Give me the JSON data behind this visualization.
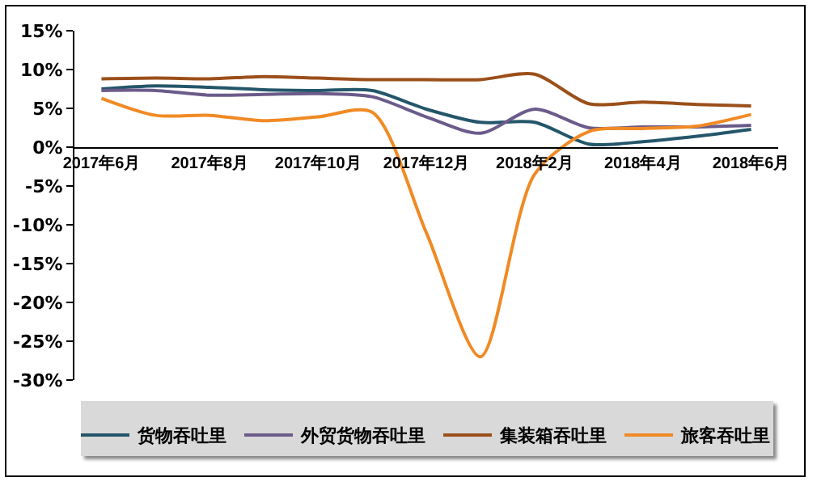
{
  "chart_data": {
    "type": "line",
    "categories": [
      "2017年6月",
      null,
      "2017年8月",
      null,
      "2017年10月",
      null,
      "2017年12月",
      null,
      "2018年2月",
      null,
      "2018年4月",
      null,
      "2018年6月"
    ],
    "series": [
      {
        "name": "货物吞吐里",
        "color": "#24566a",
        "values": [
          7.5,
          7.9,
          7.7,
          7.4,
          7.3,
          7.3,
          4.9,
          3.2,
          3.2,
          0.4,
          0.7,
          1.4,
          2.3
        ]
      },
      {
        "name": "外贸货物吞吐里",
        "color": "#6b5b8a",
        "values": [
          7.3,
          7.3,
          6.7,
          6.8,
          6.9,
          6.5,
          3.9,
          1.8,
          4.9,
          2.5,
          2.6,
          2.6,
          2.8
        ]
      },
      {
        "name": "集装箱吞吐里",
        "color": "#9b4f1a",
        "values": [
          8.8,
          8.9,
          8.8,
          9.1,
          8.9,
          8.7,
          8.7,
          8.7,
          9.4,
          5.6,
          5.8,
          5.5,
          5.3
        ]
      },
      {
        "name": "旅客吞吐里",
        "color": "#f08a24",
        "values": [
          6.3,
          4.1,
          4.1,
          3.4,
          3.9,
          4.5,
          -11,
          -27,
          -3.5,
          2.0,
          2.4,
          2.7,
          4.2
        ]
      }
    ],
    "ylim": [
      -30,
      15
    ],
    "yticks": [
      {
        "value": -30,
        "label": "-30%"
      },
      {
        "value": -25,
        "label": "-25%"
      },
      {
        "value": -20,
        "label": "-20%"
      },
      {
        "value": -15,
        "label": "-15%"
      },
      {
        "value": -10,
        "label": "-10%"
      },
      {
        "value": -5,
        "label": "-5%"
      },
      {
        "value": 0,
        "label": "0%"
      },
      {
        "value": 5,
        "label": "5%"
      },
      {
        "value": 10,
        "label": "10%"
      },
      {
        "value": 15,
        "label": "15%"
      }
    ],
    "grid": false,
    "legend": "bottom",
    "marker": "none",
    "line_style": "solid"
  }
}
